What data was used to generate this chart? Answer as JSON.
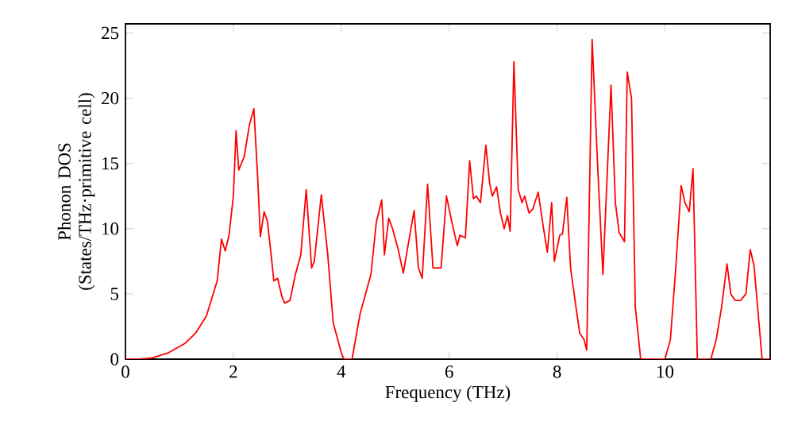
{
  "chart_data": {
    "type": "line",
    "xlabel": "Frequency (THz)",
    "ylabel": "Phonon DOS (States/THz·primitive cell)",
    "color": "#ff0000",
    "x": [
      0,
      0.25,
      0.5,
      0.8,
      1.1,
      1.3,
      1.5,
      1.7,
      1.78,
      1.85,
      1.92,
      2.0,
      2.05,
      2.1,
      2.2,
      2.3,
      2.38,
      2.45,
      2.5,
      2.57,
      2.63,
      2.7,
      2.75,
      2.82,
      2.9,
      2.95,
      3.05,
      3.15,
      3.25,
      3.35,
      3.45,
      3.5,
      3.63,
      3.75,
      3.85,
      4.0,
      4.05,
      4.2,
      4.35,
      4.45,
      4.55,
      4.65,
      4.75,
      4.8,
      4.88,
      4.95,
      5.05,
      5.15,
      5.25,
      5.35,
      5.43,
      5.5,
      5.6,
      5.7,
      5.8,
      5.85,
      5.95,
      6.05,
      6.15,
      6.2,
      6.3,
      6.38,
      6.45,
      6.5,
      6.58,
      6.68,
      6.75,
      6.8,
      6.88,
      6.95,
      7.02,
      7.08,
      7.13,
      7.2,
      7.28,
      7.35,
      7.4,
      7.48,
      7.55,
      7.65,
      7.75,
      7.82,
      7.9,
      7.95,
      8.05,
      8.1,
      8.18,
      8.25,
      8.35,
      8.42,
      8.5,
      8.55,
      8.65,
      8.75,
      8.85,
      9.0,
      9.08,
      9.15,
      9.25,
      9.3,
      9.38,
      9.45,
      9.55,
      10.0,
      10.1,
      10.2,
      10.3,
      10.37,
      10.45,
      10.52,
      10.6,
      10.85,
      10.95,
      11.05,
      11.15,
      11.22,
      11.3,
      11.4,
      11.5,
      11.58,
      11.65,
      11.8,
      11.95
    ],
    "values": [
      0,
      0,
      0.1,
      0.5,
      1.2,
      2,
      3.3,
      6,
      9.2,
      8.3,
      9.5,
      12.5,
      17.5,
      14.5,
      15.5,
      18,
      19.2,
      14,
      9.4,
      11.3,
      10.6,
      8,
      6,
      6.2,
      4.8,
      4.3,
      4.5,
      6.5,
      8,
      13,
      7,
      7.5,
      12.6,
      8,
      2.8,
      0.5,
      0,
      0,
      3.5,
      5,
      6.5,
      10.5,
      12.2,
      8,
      10.8,
      10,
      8.5,
      6.6,
      9,
      11.4,
      7,
      6.2,
      13.4,
      7,
      7,
      7,
      12.5,
      10.5,
      8.7,
      9.5,
      9.3,
      15.2,
      12.3,
      12.5,
      12,
      16.4,
      13.5,
      12.5,
      13.2,
      11.2,
      10,
      11,
      9.8,
      22.8,
      13,
      12,
      12.5,
      11.2,
      11.5,
      12.8,
      10,
      8.2,
      12,
      7.5,
      9.5,
      9.6,
      12.4,
      7,
      4,
      2,
      1.5,
      0.7,
      24.5,
      15,
      6.5,
      21,
      12,
      9.7,
      9,
      22,
      20,
      4,
      0,
      0,
      1.5,
      7,
      13.3,
      12,
      11.3,
      14.6,
      0,
      0,
      1.5,
      4,
      7.3,
      5,
      4.5,
      4.5,
      5,
      8.4,
      7.2,
      0,
      0
    ],
    "xlim": [
      0,
      11.95
    ],
    "ylim": [
      0,
      25.7
    ],
    "xticks": [
      0,
      2,
      4,
      6,
      8,
      10
    ],
    "yticks": [
      0,
      5,
      10,
      15,
      20,
      25
    ]
  }
}
